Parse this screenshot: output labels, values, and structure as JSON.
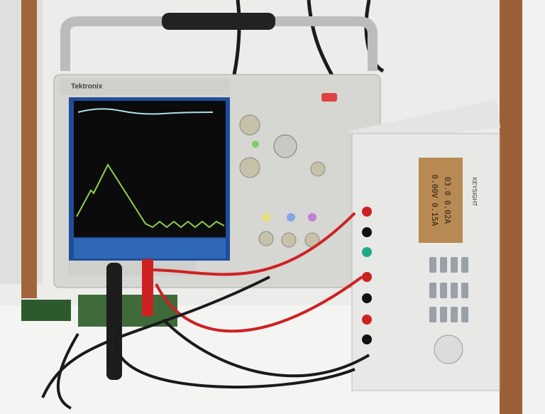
{
  "scope": {
    "brand": "Tektronix"
  },
  "supply": {
    "brand": "KEYSIGHT",
    "readout": [
      "03.0 0.02A",
      "0.00V 0.15A"
    ]
  }
}
